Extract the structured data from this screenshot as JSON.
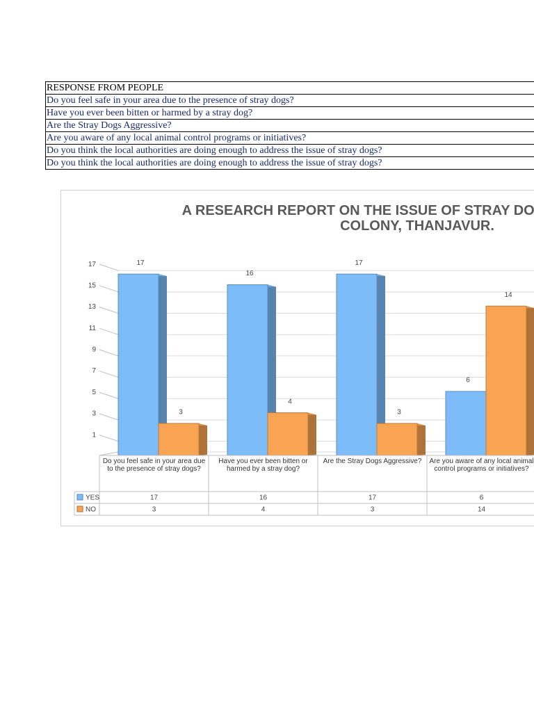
{
  "table": {
    "header": "RESPONSE FROM PEOPLE",
    "rows": [
      "Do you feel safe in your area due to the presence of stray dogs?",
      "Have you ever been bitten or harmed by a stray dog?",
      "Are the Stray Dogs Aggressive?",
      "Are you aware of any local animal control programs or initiatives?",
      "Do you think the local authorities are doing enough to address the issue of stray dogs?",
      "Do you think the local authorities are doing enough to address the issue of stray dogs?"
    ]
  },
  "chart_data": {
    "type": "bar3d",
    "title": "A RESEARCH REPORT ON THE ISSUE OF STRAY DOGS IN MUNICIPAL COLONY, THANJAVUR.",
    "categories": [
      "Do you feel safe in your area due to the presence of stray dogs?",
      "Have you ever been bitten or harmed by a stray dog?",
      "Are the Stray Dogs Aggressive?",
      "Are you aware of any local animal control programs or initiatives?"
    ],
    "series": [
      {
        "name": "YES",
        "color": "#7cbcf8",
        "values": [
          17,
          16,
          17,
          6
        ]
      },
      {
        "name": "NO",
        "color": "#f8a452",
        "values": [
          3,
          4,
          3,
          14
        ]
      }
    ],
    "ylim": [
      0,
      17.4
    ],
    "yticks": [
      1,
      3,
      5,
      7,
      9,
      11,
      13,
      15,
      17
    ],
    "grid": true
  }
}
